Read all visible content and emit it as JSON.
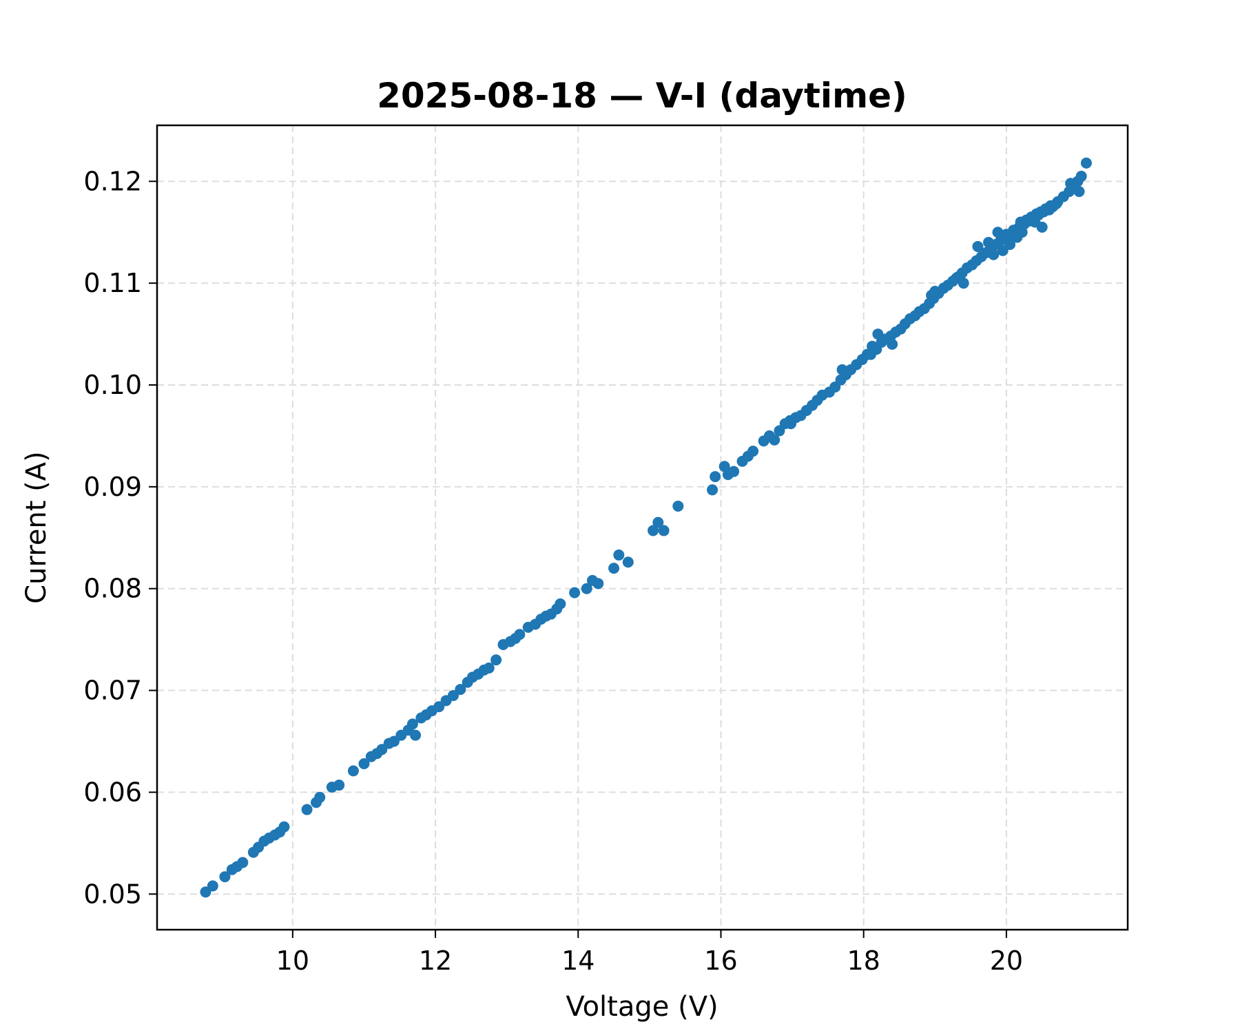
{
  "chart_data": {
    "type": "scatter",
    "title": "2025-08-18 — V-I (daytime)",
    "xlabel": "Voltage (V)",
    "ylabel": "Current (A)",
    "xlim": [
      8.1,
      21.7
    ],
    "ylim": [
      0.0465,
      0.1255
    ],
    "xticks": [
      10,
      12,
      14,
      16,
      18,
      20
    ],
    "xtick_labels": [
      "10",
      "12",
      "14",
      "16",
      "18",
      "20"
    ],
    "yticks": [
      0.05,
      0.06,
      0.07,
      0.08,
      0.09,
      0.1,
      0.11,
      0.12
    ],
    "ytick_labels": [
      "0.05",
      "0.06",
      "0.07",
      "0.08",
      "0.09",
      "0.10",
      "0.11",
      "0.12"
    ],
    "grid": true,
    "marker_color": "#1f77b4",
    "series": [
      {
        "x": [
          8.78,
          8.88,
          9.05,
          9.15,
          9.22,
          9.3,
          9.45,
          9.52,
          9.6,
          9.67,
          9.75,
          9.82,
          9.88,
          10.2,
          10.33,
          10.38,
          10.55,
          10.65,
          10.85,
          11.0,
          11.1,
          11.18,
          11.25,
          11.35,
          11.42,
          11.52,
          11.62,
          11.68,
          11.72,
          11.8,
          11.87,
          11.95,
          12.05,
          12.15,
          12.25,
          12.35,
          12.45,
          12.52,
          12.6,
          12.68,
          12.75,
          12.85,
          12.95,
          13.05,
          13.12,
          13.18,
          13.3,
          13.4,
          13.48,
          13.55,
          13.62,
          13.7,
          13.75,
          13.95,
          14.12,
          14.2,
          14.28,
          14.5,
          14.57,
          14.7,
          15.05,
          15.12,
          15.2,
          15.4,
          15.88,
          15.92,
          16.05,
          16.1,
          16.18,
          16.3,
          16.38,
          16.45,
          16.6,
          16.68,
          16.75,
          16.82,
          16.9,
          16.97,
          17.05,
          17.12,
          17.2,
          17.28,
          17.35,
          17.42,
          17.52,
          17.6,
          17.68,
          17.75,
          17.82,
          17.9,
          17.98,
          18.05,
          18.12,
          18.18,
          18.25,
          18.32,
          18.38,
          18.45,
          18.52,
          18.58,
          18.65,
          18.72,
          18.78,
          18.85,
          18.92,
          18.98,
          19.05,
          19.12,
          19.18,
          19.25,
          19.32,
          19.38,
          19.45,
          19.52,
          19.58,
          19.65,
          19.72,
          19.78,
          19.85,
          19.92,
          19.98,
          20.05,
          20.12,
          20.18,
          20.25,
          20.32,
          20.38,
          20.45,
          20.52,
          20.58,
          20.65,
          20.72,
          20.8,
          20.88,
          20.95,
          21.0,
          21.05,
          21.12,
          18.2,
          18.3,
          18.95,
          19.0,
          19.4,
          19.75,
          19.88,
          20.0,
          20.1,
          20.2,
          20.28,
          20.35,
          20.42,
          20.48,
          20.55,
          20.62,
          20.7,
          20.15,
          20.05,
          19.95,
          19.82,
          20.4,
          20.6,
          20.9,
          21.02,
          18.4,
          18.1,
          17.7,
          17.2,
          16.98,
          19.6,
          19.3,
          20.22,
          20.5
        ],
        "y": [
          0.0502,
          0.0508,
          0.0517,
          0.0524,
          0.0527,
          0.0531,
          0.0541,
          0.0546,
          0.0552,
          0.0555,
          0.0558,
          0.0561,
          0.0566,
          0.0583,
          0.059,
          0.0595,
          0.0605,
          0.0607,
          0.0621,
          0.0628,
          0.0635,
          0.0638,
          0.0642,
          0.0648,
          0.065,
          0.0656,
          0.0661,
          0.0667,
          0.0656,
          0.0673,
          0.0676,
          0.068,
          0.0684,
          0.069,
          0.0695,
          0.0701,
          0.0708,
          0.0713,
          0.0716,
          0.072,
          0.0722,
          0.073,
          0.0745,
          0.0748,
          0.0751,
          0.0755,
          0.0762,
          0.0765,
          0.077,
          0.0773,
          0.0775,
          0.078,
          0.0785,
          0.0796,
          0.08,
          0.0808,
          0.0805,
          0.082,
          0.0833,
          0.0826,
          0.0857,
          0.0865,
          0.0857,
          0.0881,
          0.0897,
          0.091,
          0.092,
          0.0912,
          0.0915,
          0.0925,
          0.093,
          0.0935,
          0.0945,
          0.095,
          0.0946,
          0.0955,
          0.0962,
          0.0965,
          0.0968,
          0.097,
          0.0975,
          0.098,
          0.0985,
          0.099,
          0.0993,
          0.0998,
          0.1005,
          0.101,
          0.1015,
          0.102,
          0.1025,
          0.103,
          0.1038,
          0.1035,
          0.1042,
          0.1045,
          0.1048,
          0.1052,
          0.1055,
          0.106,
          0.1065,
          0.1068,
          0.1072,
          0.1075,
          0.108,
          0.1085,
          0.109,
          0.1095,
          0.1098,
          0.1102,
          0.1106,
          0.111,
          0.1115,
          0.1118,
          0.1122,
          0.1126,
          0.113,
          0.1134,
          0.1138,
          0.1142,
          0.1145,
          0.1148,
          0.1152,
          0.1155,
          0.1158,
          0.1161,
          0.1164,
          0.1167,
          0.117,
          0.1172,
          0.1175,
          0.118,
          0.1185,
          0.119,
          0.1195,
          0.12,
          0.1205,
          0.1218,
          0.105,
          0.1045,
          0.1088,
          0.1092,
          0.11,
          0.114,
          0.115,
          0.1148,
          0.1152,
          0.116,
          0.1162,
          0.1165,
          0.1168,
          0.117,
          0.1173,
          0.1176,
          0.1178,
          0.1145,
          0.1138,
          0.1132,
          0.1128,
          0.116,
          0.1172,
          0.1198,
          0.119,
          0.104,
          0.103,
          0.1015,
          0.0975,
          0.0962,
          0.1136,
          0.1105,
          0.115,
          0.1155
        ]
      }
    ]
  }
}
